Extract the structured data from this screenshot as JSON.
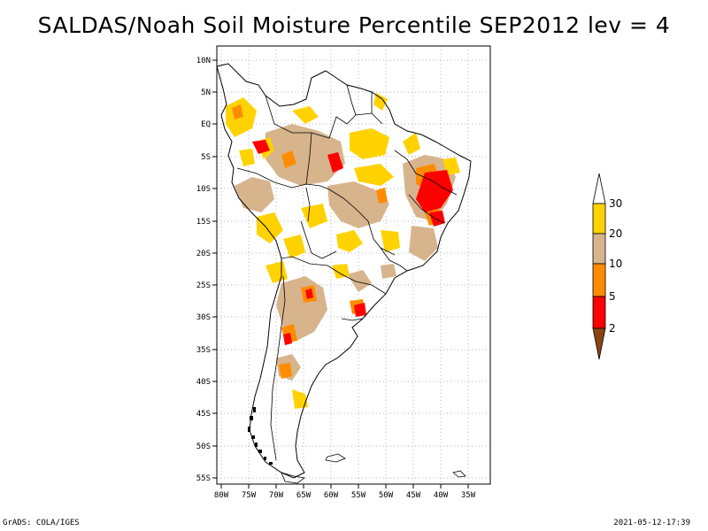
{
  "title": "SALDAS/Noah Soil Moisture Percentile SEP2012 lev = 4",
  "footer": {
    "left": "GrADS: COLA/IGES",
    "right": "2021-05-12-17:39"
  },
  "axes": {
    "lat_labels": [
      "10N",
      "5N",
      "EQ",
      "5S",
      "10S",
      "15S",
      "20S",
      "25S",
      "30S",
      "35S",
      "40S",
      "45S",
      "50S",
      "55S"
    ],
    "lon_labels": [
      "80W",
      "75W",
      "70W",
      "65W",
      "60W",
      "55W",
      "50W",
      "45W",
      "40W",
      "35W"
    ]
  },
  "colorbar": {
    "labels": [
      "30",
      "20",
      "10",
      "5",
      "2"
    ],
    "colors": {
      "above_30": "#ffffff",
      "20_30": "#ffd200",
      "10_20": "#d7b48c",
      "5_10": "#ff8c00",
      "2_5": "#ff0000",
      "below_2": "#8b4513"
    }
  }
}
